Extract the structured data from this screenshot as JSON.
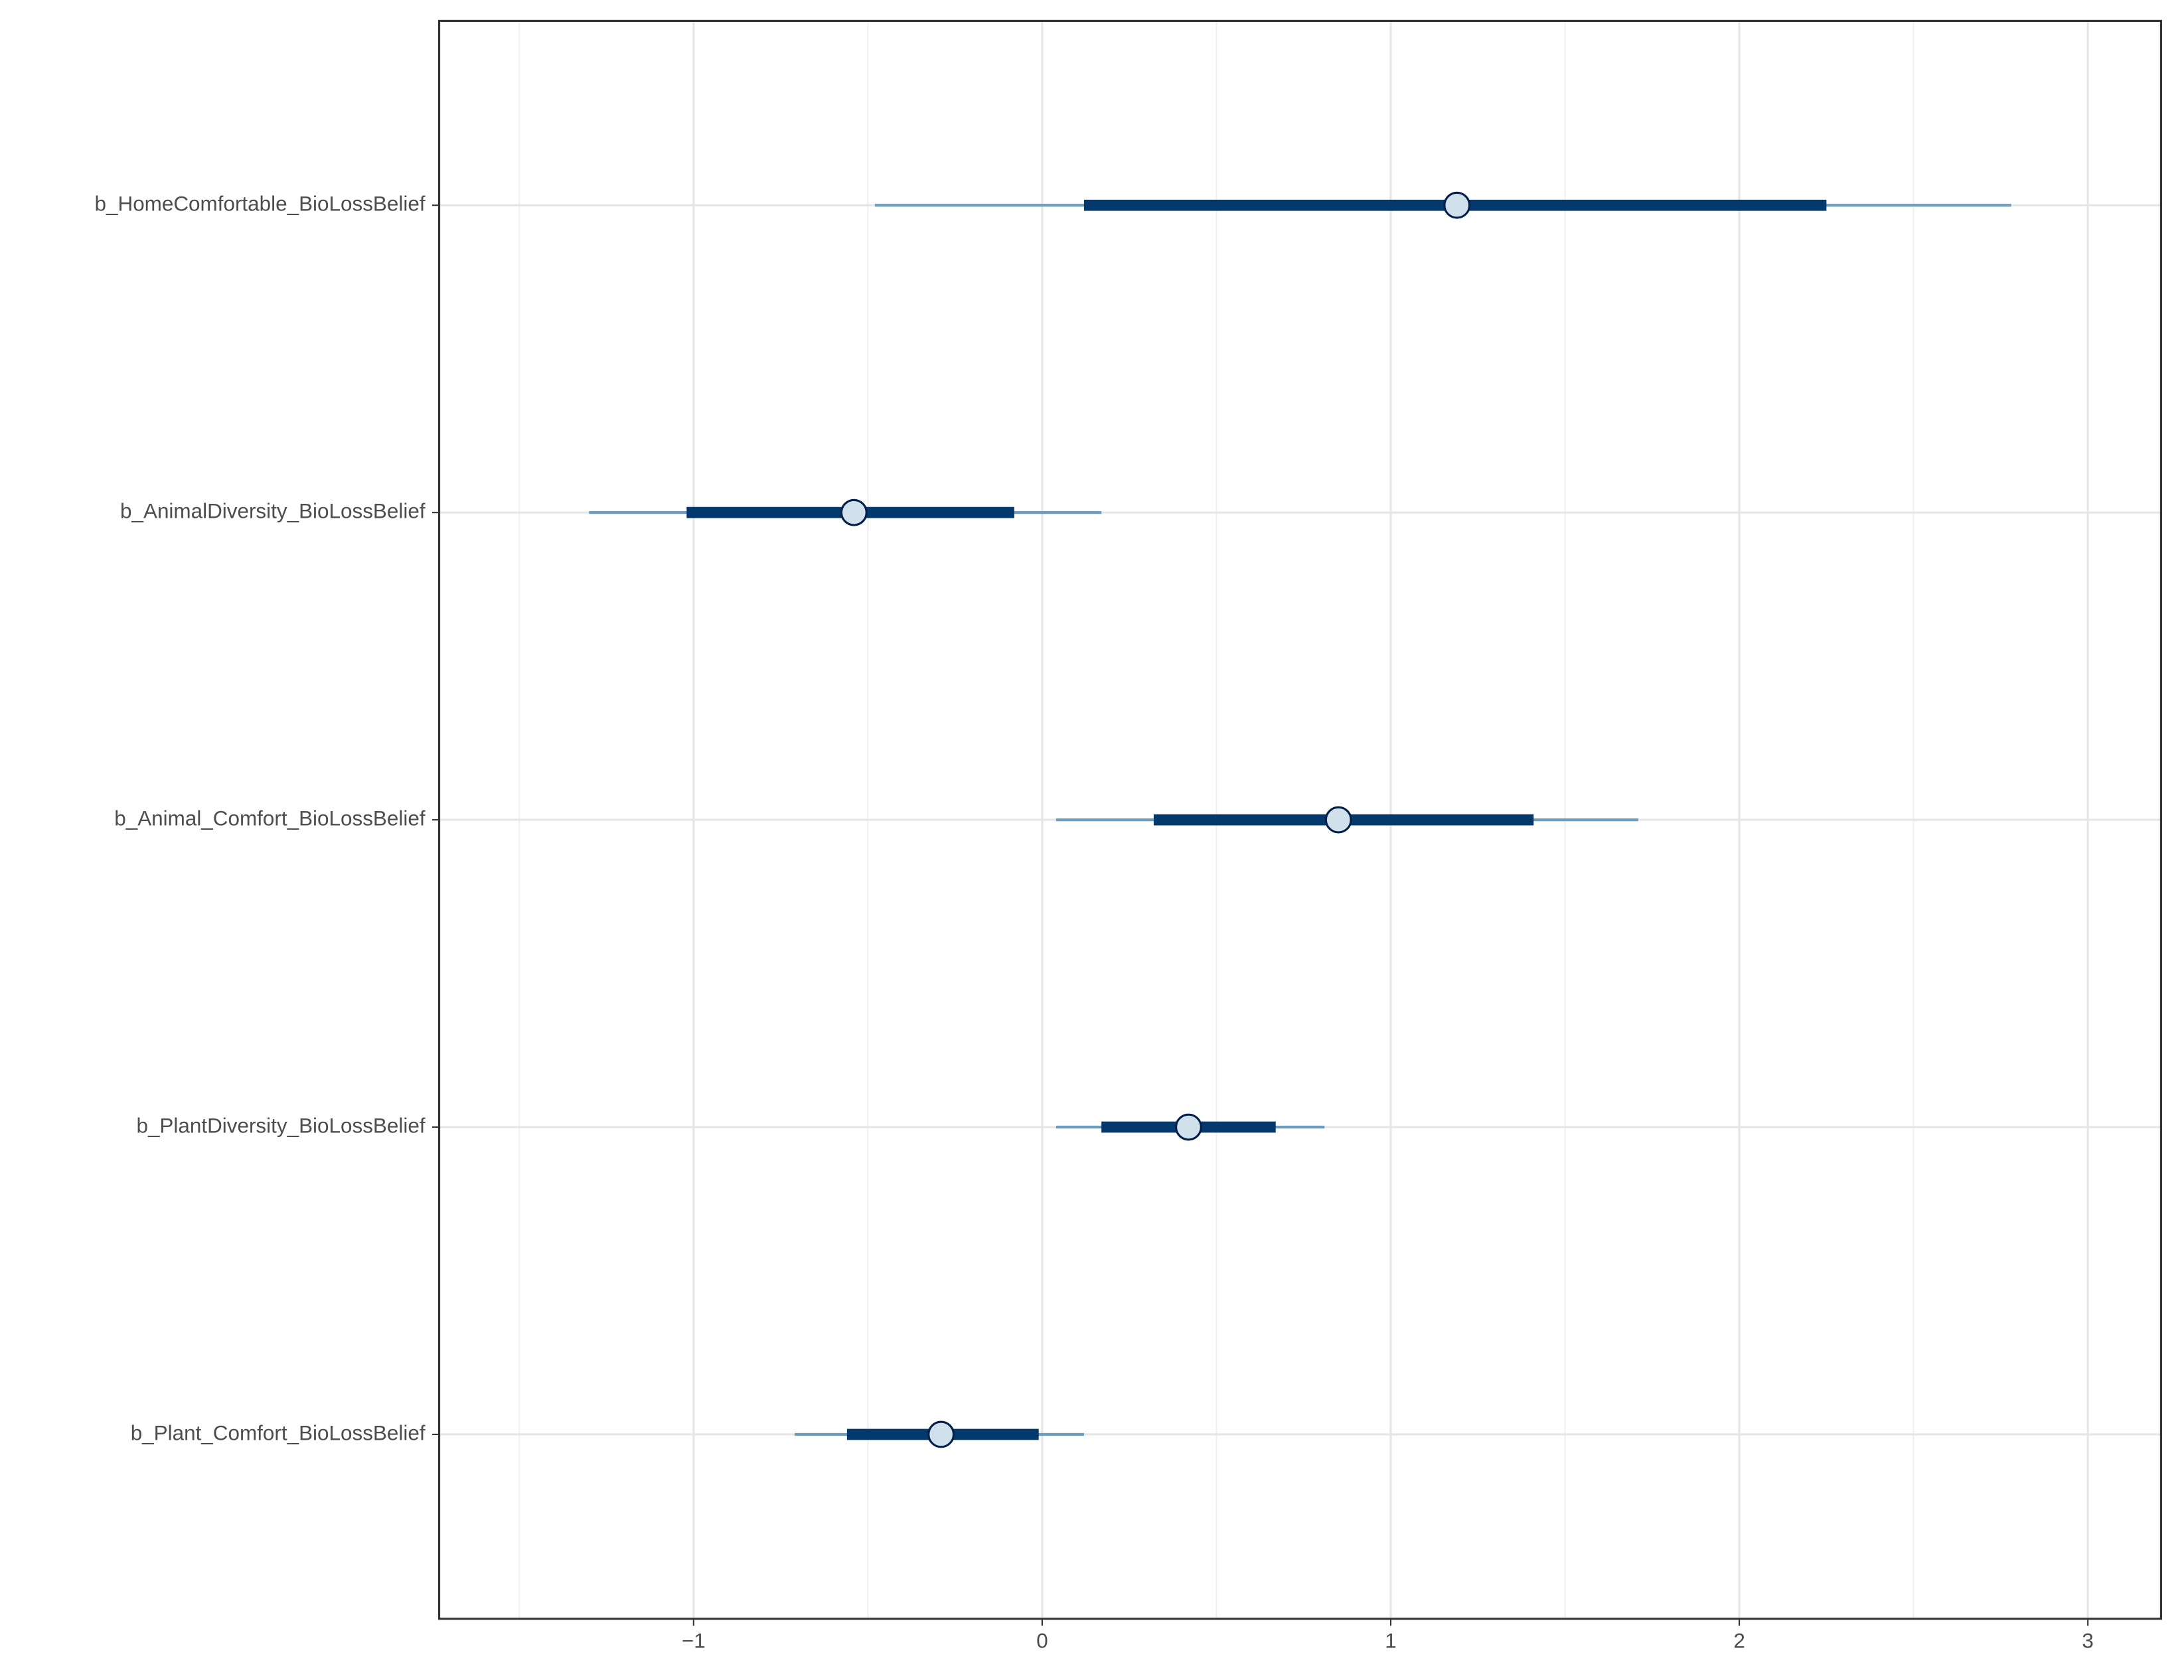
{
  "chart_data": {
    "type": "interval",
    "categories": [
      "b_HomeComfortable_BioLossBelief",
      "b_AnimalDiversity_BioLossBelief",
      "b_Animal_Comfort_BioLossBelief",
      "b_PlantDiversity_BioLossBelief",
      "b_Plant_Comfort_BioLossBelief"
    ],
    "estimates": [
      1.19,
      -0.54,
      0.85,
      0.42,
      -0.29
    ],
    "inner": [
      [
        0.12,
        2.25
      ],
      [
        -1.02,
        -0.08
      ],
      [
        0.32,
        1.41
      ],
      [
        0.17,
        0.67
      ],
      [
        -0.56,
        -0.01
      ]
    ],
    "outer": [
      [
        -0.48,
        2.78
      ],
      [
        -1.3,
        0.17
      ],
      [
        0.04,
        1.71
      ],
      [
        0.04,
        0.81
      ],
      [
        -0.71,
        0.12
      ]
    ],
    "colors": {
      "outer": "#6e9cbf",
      "inner": "#03396c",
      "point_fill": "#d1e1ec",
      "point_stroke": "#011f4b"
    },
    "xlim": [
      -1.73,
      3.21
    ],
    "xticks": [
      {
        "value": -1,
        "label": "−1"
      },
      0,
      1,
      2,
      3
    ],
    "xminor": [
      -1.5,
      -0.5,
      0.5,
      1.5,
      2.5
    ],
    "grid": true
  }
}
